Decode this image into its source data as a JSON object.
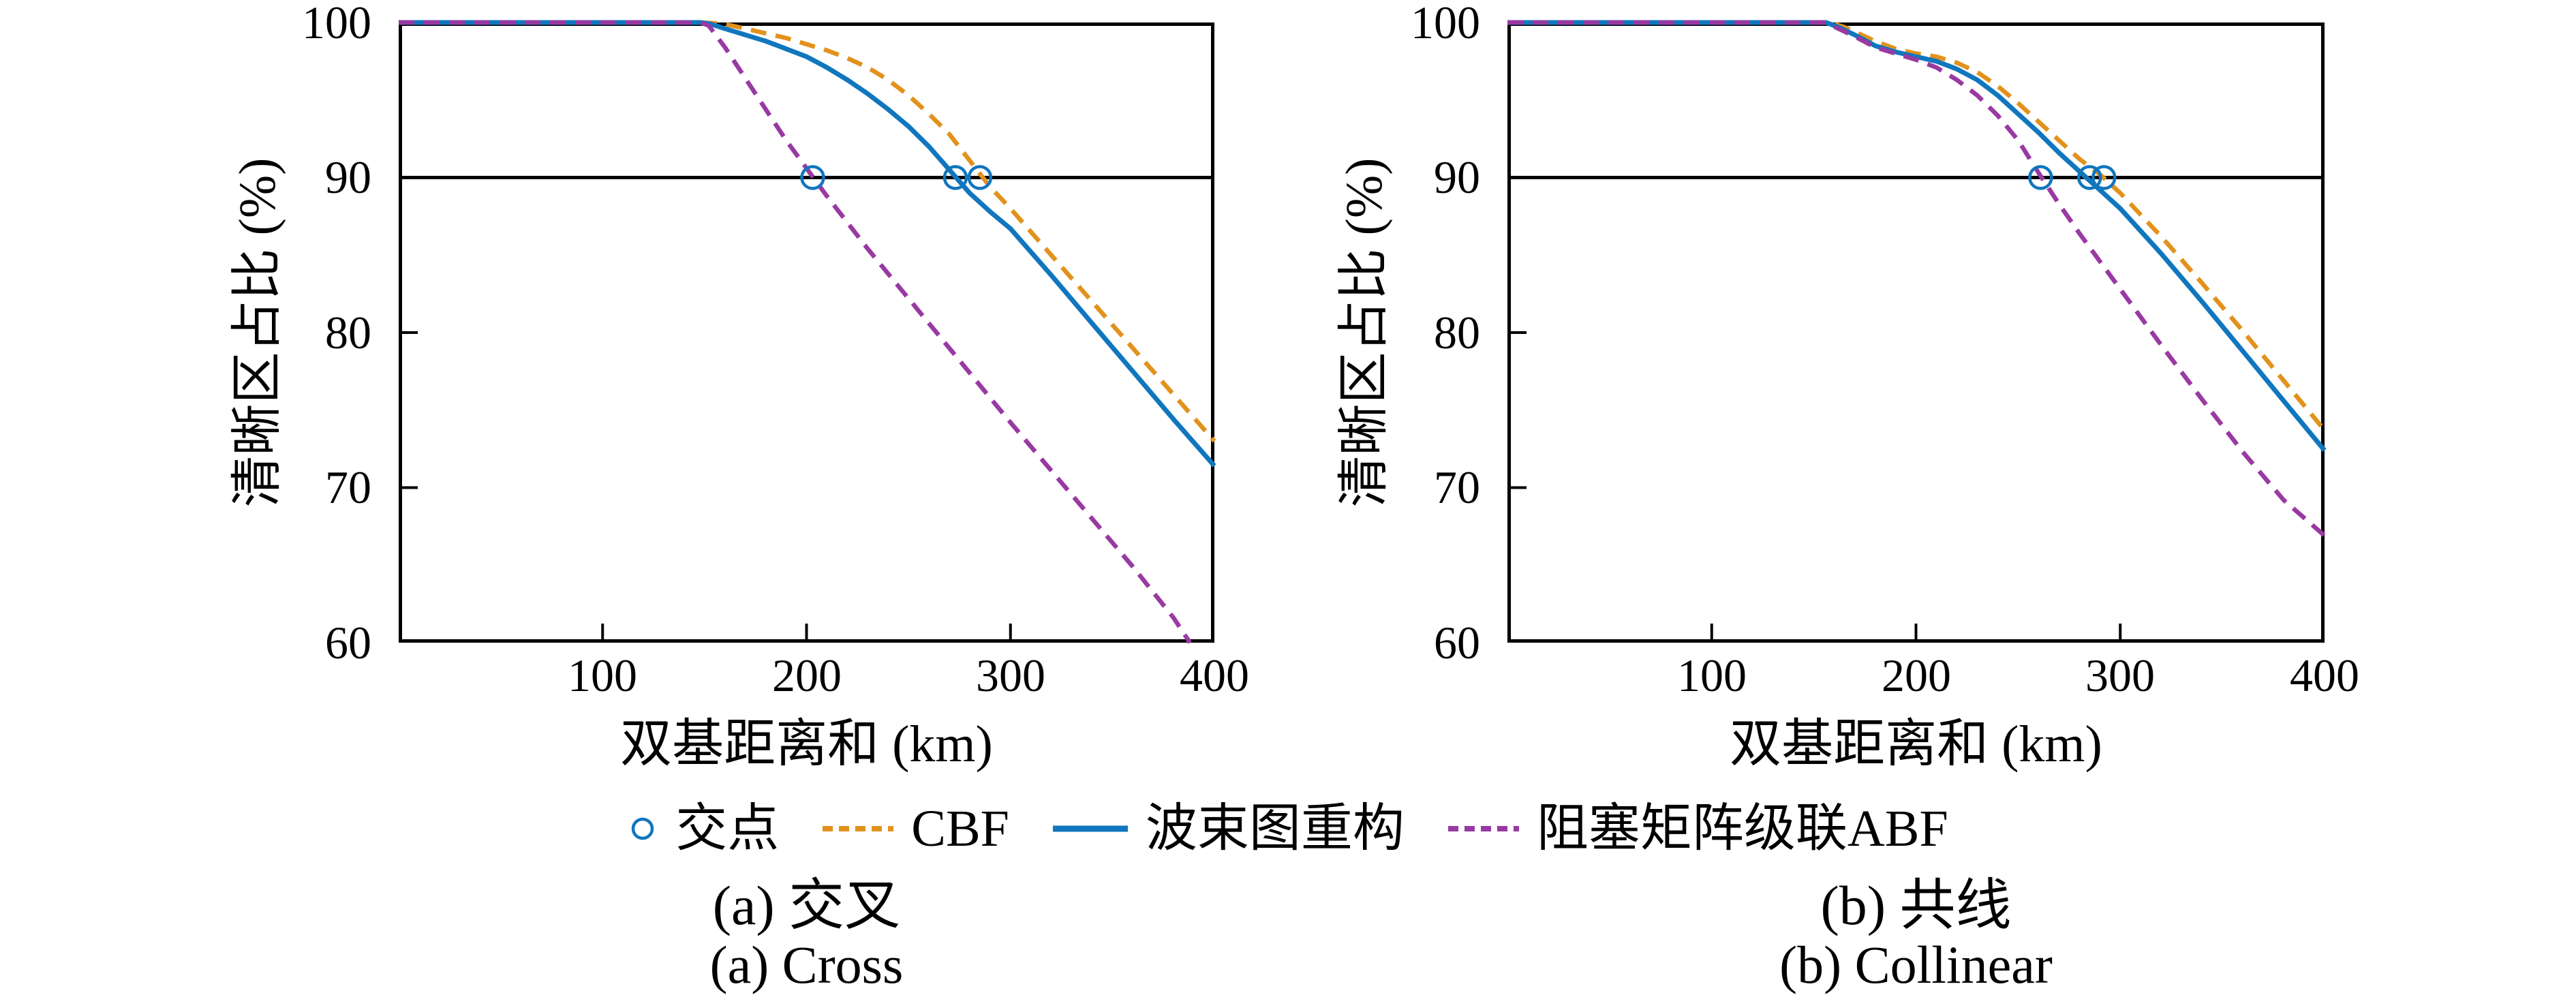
{
  "colors": {
    "blue": "#1076BE",
    "orange": "#E2921C",
    "purple": "#9939A2",
    "axis": "#000000",
    "background": "#FFFFFF"
  },
  "axes": {
    "x_label": "双基距离和 (km)",
    "y_label": "清晰区占比 (%)",
    "x_range": [
      0,
      400
    ],
    "y_range": [
      60,
      100
    ],
    "x_tick_values": [
      100,
      200,
      300,
      400
    ],
    "x_tick_labels": [
      "100",
      "200",
      "300",
      "400"
    ],
    "y_tick_values": [
      100,
      90,
      80,
      70,
      60
    ],
    "y_tick_labels": [
      "100",
      "90",
      "80",
      "70",
      "60"
    ],
    "ref_line": 90,
    "grid": false,
    "legend_position": "bottom-center"
  },
  "legend": {
    "items": [
      {
        "label": "交点",
        "type": "marker",
        "color": "#1076BE"
      },
      {
        "label": "CBF",
        "type": "dashed",
        "color": "#E2921C"
      },
      {
        "label": "波束图重构",
        "type": "solid",
        "color": "#1076BE"
      },
      {
        "label": "阻塞矩阵级联ABF",
        "type": "dashed",
        "color": "#9939A2"
      }
    ]
  },
  "chart_data": [
    {
      "type": "line",
      "caption_zh": "(a) 交叉",
      "caption_en": "(a) Cross",
      "xlabel": "双基距离和 (km)",
      "ylabel": "清晰区占比 (%)",
      "xlim": [
        0,
        400
      ],
      "ylim": [
        60,
        100
      ],
      "series": [
        {
          "name": "CBF",
          "color": "#E2921C",
          "style": "dashed",
          "points": [
            [
              0,
              100
            ],
            [
              148,
              100
            ],
            [
              155,
              99.95
            ],
            [
              160,
              99.9
            ],
            [
              170,
              99.6
            ],
            [
              180,
              99.3
            ],
            [
              190,
              99.0
            ],
            [
              200,
              98.6
            ],
            [
              210,
              98.2
            ],
            [
              220,
              97.7
            ],
            [
              230,
              97.1
            ],
            [
              240,
              96.3
            ],
            [
              250,
              95.3
            ],
            [
              260,
              94.1
            ],
            [
              270,
              92.8
            ],
            [
              280,
              91.1
            ],
            [
              290,
              89.4
            ],
            [
              300,
              88.0
            ],
            [
              320,
              85.0
            ],
            [
              340,
              82.0
            ],
            [
              360,
              79.0
            ],
            [
              380,
              76.0
            ],
            [
              400,
              73.0
            ]
          ]
        },
        {
          "name": "波束图重构",
          "color": "#1076BE",
          "style": "solid",
          "points": [
            [
              0,
              100
            ],
            [
              148,
              100
            ],
            [
              153,
              99.9
            ],
            [
              160,
              99.6
            ],
            [
              170,
              99.2
            ],
            [
              180,
              98.8
            ],
            [
              190,
              98.3
            ],
            [
              200,
              97.8
            ],
            [
              210,
              97.1
            ],
            [
              220,
              96.3
            ],
            [
              230,
              95.4
            ],
            [
              240,
              94.4
            ],
            [
              250,
              93.3
            ],
            [
              260,
              92.0
            ],
            [
              270,
              90.5
            ],
            [
              280,
              89.0
            ],
            [
              290,
              87.8
            ],
            [
              300,
              86.7
            ],
            [
              320,
              83.7
            ],
            [
              340,
              80.6
            ],
            [
              360,
              77.5
            ],
            [
              380,
              74.4
            ],
            [
              400,
              71.4
            ]
          ]
        },
        {
          "name": "阻塞矩阵级联ABF",
          "color": "#9939A2",
          "style": "dashed",
          "points": [
            [
              0,
              100
            ],
            [
              148,
              100
            ],
            [
              152,
              99.8
            ],
            [
              160,
              98.4
            ],
            [
              170,
              96.4
            ],
            [
              180,
              94.4
            ],
            [
              190,
              92.4
            ],
            [
              200,
              90.6
            ],
            [
              210,
              88.8
            ],
            [
              220,
              87.1
            ],
            [
              230,
              85.4
            ],
            [
              240,
              83.8
            ],
            [
              250,
              82.2
            ],
            [
              260,
              80.6
            ],
            [
              270,
              79.0
            ],
            [
              280,
              77.4
            ],
            [
              290,
              75.8
            ],
            [
              300,
              74.2
            ],
            [
              320,
              71.1
            ],
            [
              340,
              68.0
            ],
            [
              360,
              64.9
            ],
            [
              380,
              61.6
            ],
            [
              388,
              60.0
            ]
          ]
        }
      ],
      "intersections": {
        "name": "交点",
        "color": "#1076BE",
        "points": [
          [
            203,
            90
          ],
          [
            273,
            90
          ],
          [
            285,
            90
          ]
        ]
      }
    },
    {
      "type": "line",
      "caption_zh": "(b) 共线",
      "caption_en": "(b) Collinear",
      "xlabel": "双基距离和 (km)",
      "ylabel": "清晰区占比 (%)",
      "xlim": [
        0,
        400
      ],
      "ylim": [
        60,
        100
      ],
      "series": [
        {
          "name": "CBF",
          "color": "#E2921C",
          "style": "dashed",
          "points": [
            [
              0,
              100
            ],
            [
              158,
              100
            ],
            [
              165,
              99.7
            ],
            [
              170,
              99.4
            ],
            [
              180,
              98.8
            ],
            [
              190,
              98.3
            ],
            [
              200,
              98.0
            ],
            [
              210,
              97.8
            ],
            [
              220,
              97.4
            ],
            [
              230,
              96.8
            ],
            [
              240,
              95.9
            ],
            [
              250,
              94.8
            ],
            [
              260,
              93.6
            ],
            [
              270,
              92.4
            ],
            [
              280,
              91.2
            ],
            [
              290,
              90.2
            ],
            [
              300,
              89.0
            ],
            [
              320,
              86.2
            ],
            [
              340,
              83.2
            ],
            [
              360,
              80.1
            ],
            [
              380,
              76.9
            ],
            [
              400,
              73.7
            ]
          ]
        },
        {
          "name": "波束图重构",
          "color": "#1076BE",
          "style": "solid",
          "points": [
            [
              0,
              100
            ],
            [
              156,
              100
            ],
            [
              162,
              99.7
            ],
            [
              170,
              99.2
            ],
            [
              180,
              98.5
            ],
            [
              190,
              98.1
            ],
            [
              200,
              97.8
            ],
            [
              210,
              97.5
            ],
            [
              220,
              97.0
            ],
            [
              230,
              96.3
            ],
            [
              240,
              95.3
            ],
            [
              250,
              94.1
            ],
            [
              260,
              92.9
            ],
            [
              270,
              91.6
            ],
            [
              280,
              90.4
            ],
            [
              290,
              89.2
            ],
            [
              300,
              88.0
            ],
            [
              320,
              85.1
            ],
            [
              340,
              82.0
            ],
            [
              360,
              78.8
            ],
            [
              380,
              75.6
            ],
            [
              400,
              72.4
            ]
          ]
        },
        {
          "name": "阻塞矩阵级联ABF",
          "color": "#9939A2",
          "style": "dashed",
          "points": [
            [
              0,
              100
            ],
            [
              156,
              100
            ],
            [
              162,
              99.6
            ],
            [
              170,
              99.1
            ],
            [
              180,
              98.4
            ],
            [
              190,
              98.0
            ],
            [
              200,
              97.6
            ],
            [
              210,
              97.1
            ],
            [
              220,
              96.3
            ],
            [
              230,
              95.3
            ],
            [
              240,
              94.0
            ],
            [
              250,
              92.4
            ],
            [
              260,
              90.3
            ],
            [
              270,
              88.3
            ],
            [
              280,
              86.4
            ],
            [
              290,
              84.6
            ],
            [
              300,
              82.8
            ],
            [
              320,
              79.2
            ],
            [
              340,
              75.7
            ],
            [
              360,
              72.3
            ],
            [
              380,
              69.2
            ],
            [
              400,
              66.9
            ]
          ]
        }
      ],
      "intersections": {
        "name": "交点",
        "color": "#1076BE",
        "points": [
          [
            261,
            90
          ],
          [
            285,
            90
          ],
          [
            292,
            90
          ]
        ]
      }
    }
  ]
}
